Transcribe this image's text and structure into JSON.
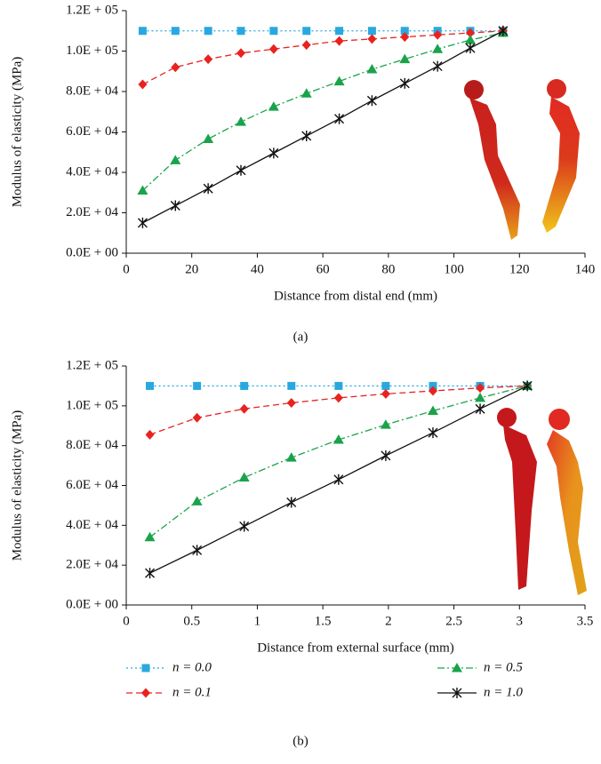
{
  "chart_data": [
    {
      "type": "line",
      "label": "(a)",
      "x_label": "Distance from distal end (mm)",
      "y_label": "Modulus of elasticity (MPa)",
      "x": [
        5,
        15,
        25,
        35,
        45,
        55,
        65,
        75,
        85,
        95,
        105,
        115
      ],
      "xlim": [
        0,
        140
      ],
      "xticks": [
        0,
        20,
        40,
        60,
        80,
        100,
        120,
        140
      ],
      "ylim": [
        0,
        120000
      ],
      "yticks": [
        {
          "value": 0,
          "label": "0.0E + 00"
        },
        {
          "value": 20000,
          "label": "2.0E + 04"
        },
        {
          "value": 40000,
          "label": "4.0E + 04"
        },
        {
          "value": 60000,
          "label": "6.0E + 04"
        },
        {
          "value": 80000,
          "label": "8.0E + 04"
        },
        {
          "value": 100000,
          "label": "1.0E + 05"
        },
        {
          "value": 120000,
          "label": "1.2E + 05"
        }
      ],
      "series": [
        {
          "color": "#29a8e0",
          "marker": "square",
          "dash": "dotted",
          "values": [
            110000,
            110000,
            110000,
            110000,
            110000,
            110000,
            110000,
            110000,
            110000,
            110000,
            110000,
            110000
          ]
        },
        {
          "color": "#e8231f",
          "marker": "diamond",
          "dash": "dashed",
          "values": [
            83500,
            92000,
            96000,
            99000,
            101000,
            103000,
            105000,
            106000,
            107000,
            108000,
            109000,
            110000
          ]
        },
        {
          "color": "#1aa34a",
          "marker": "triangle",
          "dash": "dashdot",
          "values": [
            31000,
            46000,
            56500,
            65000,
            72500,
            79000,
            85000,
            91000,
            96000,
            101000,
            105500,
            109000
          ]
        },
        {
          "color": "#111111",
          "marker": "asterisk",
          "dash": "solid",
          "values": [
            15000,
            23500,
            32000,
            41000,
            49500,
            58000,
            66500,
            75500,
            84000,
            92500,
            101500,
            110000
          ]
        }
      ]
    },
    {
      "type": "line",
      "label": "(b)",
      "x_label": "Distance from external surface (mm)",
      "y_label": "Modulus of elasticity (MPa)",
      "x": [
        0.18,
        0.54,
        0.9,
        1.26,
        1.62,
        1.98,
        2.34,
        2.7,
        3.06
      ],
      "xlim": [
        0,
        3.5
      ],
      "xticks": [
        0,
        0.5,
        1,
        1.5,
        2,
        2.5,
        3,
        3.5
      ],
      "ylim": [
        0,
        120000
      ],
      "yticks": [
        {
          "value": 0,
          "label": "0.0E + 00"
        },
        {
          "value": 20000,
          "label": "2.0E + 04"
        },
        {
          "value": 40000,
          "label": "4.0E + 04"
        },
        {
          "value": 60000,
          "label": "6.0E + 04"
        },
        {
          "value": 80000,
          "label": "8.0E + 04"
        },
        {
          "value": 100000,
          "label": "1.0E + 05"
        },
        {
          "value": 120000,
          "label": "1.2E + 05"
        }
      ],
      "series": [
        {
          "name": "n = 0.0",
          "color": "#29a8e0",
          "marker": "square",
          "dash": "dotted",
          "values": [
            110000,
            110000,
            110000,
            110000,
            110000,
            110000,
            110000,
            110000,
            110000
          ]
        },
        {
          "name": "n = 0.1",
          "color": "#e8231f",
          "marker": "diamond",
          "dash": "dashed",
          "values": [
            85500,
            94000,
            98500,
            101500,
            104000,
            106000,
            107500,
            109000,
            110000
          ]
        },
        {
          "name": "n = 0.5",
          "color": "#1aa34a",
          "marker": "triangle",
          "dash": "dashdot",
          "values": [
            34000,
            52000,
            64000,
            74000,
            83000,
            90500,
            97500,
            104000,
            110000
          ]
        },
        {
          "name": "n = 1.0",
          "color": "#111111",
          "marker": "asterisk",
          "dash": "solid",
          "values": [
            16000,
            27500,
            39500,
            51500,
            63000,
            75000,
            86500,
            98500,
            110000
          ]
        }
      ]
    }
  ]
}
